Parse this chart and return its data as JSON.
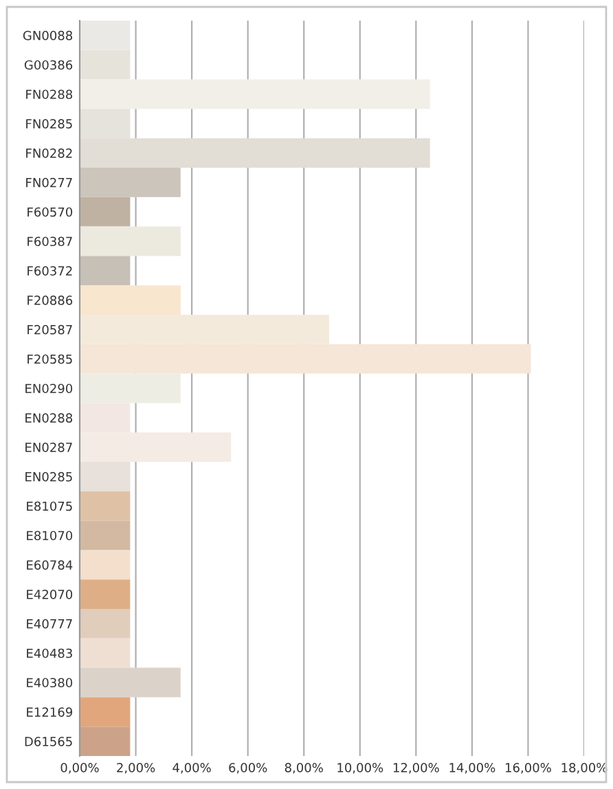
{
  "chart_data": {
    "type": "bar",
    "orientation": "horizontal",
    "grid": "x",
    "categories": [
      "GN0088",
      "G00386",
      "FN0288",
      "FN0285",
      "FN0282",
      "FN0277",
      "F60570",
      "F60387",
      "F60372",
      "F20886",
      "F20587",
      "F20585",
      "EN0290",
      "EN0288",
      "EN0287",
      "EN0285",
      "E81075",
      "E81070",
      "E60784",
      "E42070",
      "E40777",
      "E40483",
      "E40380",
      "E12169",
      "D61565"
    ],
    "values": [
      1.8,
      1.8,
      12.5,
      1.8,
      12.5,
      3.6,
      1.8,
      3.6,
      1.8,
      3.6,
      8.9,
      16.1,
      3.6,
      1.8,
      5.4,
      1.8,
      1.8,
      1.8,
      1.8,
      1.8,
      1.8,
      1.8,
      3.6,
      1.8,
      1.8
    ],
    "colors": [
      "#ebe9e6",
      "#e6e3da",
      "#f2efe8",
      "#e6e2dc",
      "#e2ddd5",
      "#ccc5bb",
      "#bfb2a3",
      "#ece9df",
      "#c7c0b6",
      "#f8e6cf",
      "#f4eadc",
      "#f5e6d8",
      "#eeede3",
      "#f3e7e3",
      "#f4ebe4",
      "#e8e0da",
      "#dfc2a6",
      "#d3b9a2",
      "#f3dfcc",
      "#deaf86",
      "#e1cdbb",
      "#efdfd3",
      "#dbd2ca",
      "#e2a67c",
      "#cca389"
    ],
    "xlim": [
      0,
      18
    ],
    "xticks": [
      {
        "value": 0,
        "label": "0,00%"
      },
      {
        "value": 2,
        "label": "2,00%"
      },
      {
        "value": 4,
        "label": "4,00%"
      },
      {
        "value": 6,
        "label": "6,00%"
      },
      {
        "value": 8,
        "label": "8,00%"
      },
      {
        "value": 10,
        "label": "10,00%"
      },
      {
        "value": 12,
        "label": "12,00%"
      },
      {
        "value": 14,
        "label": "14,00%"
      },
      {
        "value": 16,
        "label": "16,00%"
      },
      {
        "value": 18,
        "label": "18,00%"
      }
    ]
  }
}
